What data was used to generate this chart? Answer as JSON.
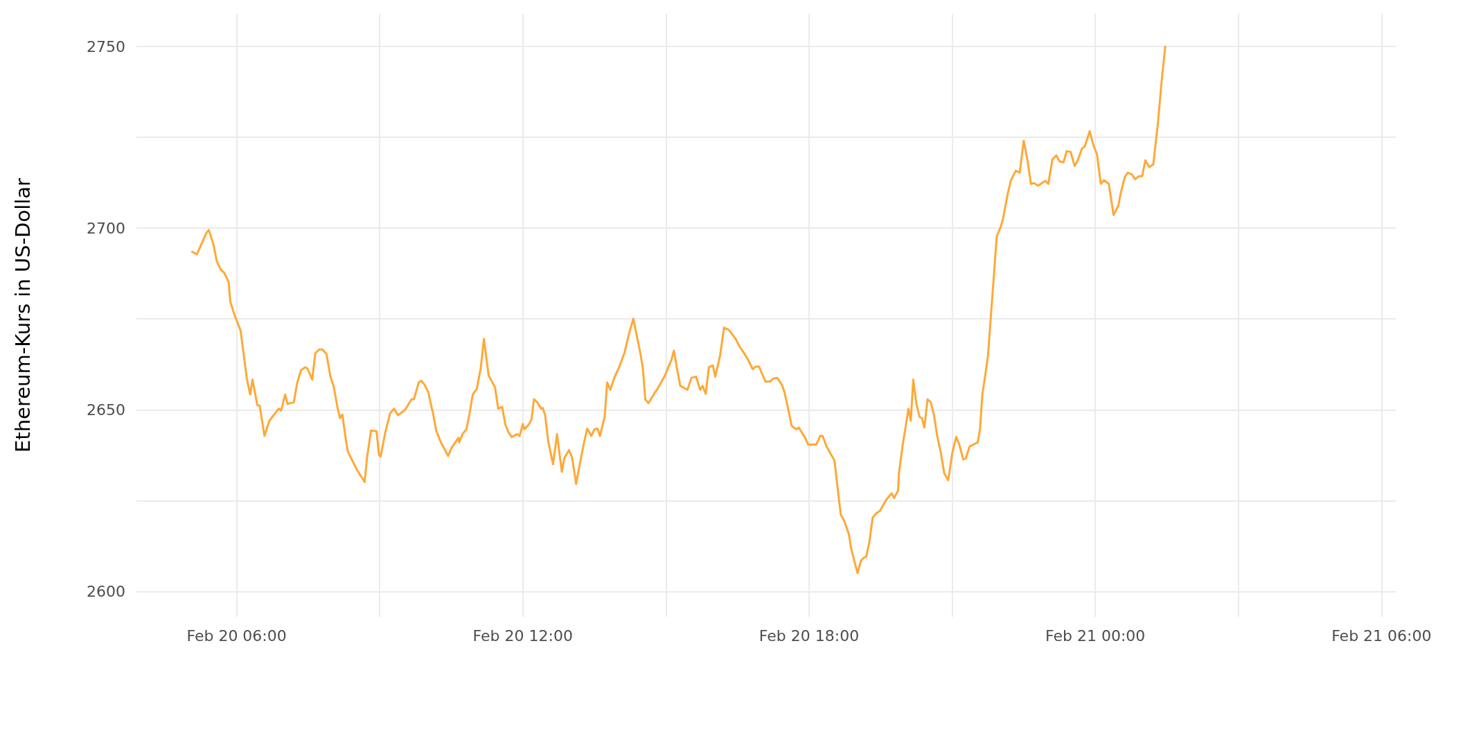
{
  "chart_data": {
    "type": "line",
    "ylabel": "Ethereum-Kurs in US-Dollar",
    "x": [
      "--02-20T05:04",
      "--02-20T05:10",
      "--02-20T05:22",
      "--02-20T05:25",
      "--02-20T05:31",
      "--02-20T05:35",
      "--02-20T05:40",
      "--02-20T05:44",
      "--02-20T05:50",
      "--02-20T05:52",
      "--02-20T05:58",
      "--02-20T06:05",
      "--02-20T06:13",
      "--02-20T06:17",
      "--02-20T06:20",
      "--02-20T06:26",
      "--02-20T06:29",
      "--02-20T06:35",
      "--02-20T06:41",
      "--02-20T06:49",
      "--02-20T06:53",
      "--02-20T06:56",
      "--02-20T07:01",
      "--02-20T07:04",
      "--02-20T07:12",
      "--02-20T07:16",
      "--02-20T07:21",
      "--02-20T07:26",
      "--02-20T07:29",
      "--02-20T07:35",
      "--02-20T07:39",
      "--02-20T07:44",
      "--02-20T07:48",
      "--02-20T07:53",
      "--02-20T07:58",
      "--02-20T08:02",
      "--02-20T08:07",
      "--02-20T08:10",
      "--02-20T08:13",
      "--02-20T08:17",
      "--02-20T08:20",
      "--02-20T08:32",
      "--02-20T08:41",
      "--02-20T08:44",
      "--02-20T08:49",
      "--02-20T08:56",
      "--02-20T08:59",
      "--02-20T09:01",
      "--02-20T09:07",
      "--02-20T09:13",
      "--02-20T09:18",
      "--02-20T09:23",
      "--02-20T09:32",
      "--02-20T09:40",
      "--02-20T09:43",
      "--02-20T09:49",
      "--02-20T09:52",
      "--02-20T09:56",
      "--02-20T10:01",
      "--02-20T10:07",
      "--02-20T10:11",
      "--02-20T10:17",
      "--02-20T10:26",
      "--02-20T10:30",
      "--02-20T10:39",
      "--02-20T10:40",
      "--02-20T10:44",
      "--02-20T10:49",
      "--02-20T10:53",
      "--02-20T10:57",
      "--02-20T11:02",
      "--02-20T11:07",
      "--02-20T11:11",
      "--02-20T11:17",
      "--02-20T11:25",
      "--02-20T11:29",
      "--02-20T11:34",
      "--02-20T11:38",
      "--02-20T11:42",
      "--02-20T11:46",
      "--02-20T11:53",
      "--02-20T11:56",
      "--02-20T12:00",
      "--02-20T12:02",
      "--02-20T12:08",
      "--02-20T12:11",
      "--02-20T12:14",
      "--02-20T12:18",
      "--02-20T12:23",
      "--02-20T12:25",
      "--02-20T12:28",
      "--02-20T12:32",
      "--02-20T12:38",
      "--02-20T12:43",
      "--02-20T12:49",
      "--02-20T12:52",
      "--02-20T12:58",
      "--02-20T13:02",
      "--02-20T13:07",
      "--02-20T13:10",
      "--02-20T13:17",
      "--02-20T13:21",
      "--02-20T13:26",
      "--02-20T13:30",
      "--02-20T13:34",
      "--02-20T13:37",
      "--02-20T13:43",
      "--02-20T13:46",
      "--02-20T13:50",
      "--02-20T13:55",
      "--02-20T14:02",
      "--02-20T14:08",
      "--02-20T14:14",
      "--02-20T14:19",
      "--02-20T14:23",
      "--02-20T14:28",
      "--02-20T14:31",
      "--02-20T14:34",
      "--02-20T14:38",
      "--02-20T14:46",
      "--02-20T14:50",
      "--02-20T14:58",
      "--02-20T15:07",
      "--02-20T15:10",
      "--02-20T15:14",
      "--02-20T15:18",
      "--02-20T15:27",
      "--02-20T15:32",
      "--02-20T15:38",
      "--02-20T15:43",
      "--02-20T15:46",
      "--02-20T15:50",
      "--02-20T15:54",
      "--02-20T15:59",
      "--02-20T16:02",
      "--02-20T16:08",
      "--02-20T16:13",
      "--02-20T16:19",
      "--02-20T16:28",
      "--02-20T16:32",
      "--02-20T16:40",
      "--02-20T16:44",
      "--02-20T16:49",
      "--02-20T16:53",
      "--02-20T16:57",
      "--02-20T17:02",
      "--02-20T17:05",
      "--02-20T17:11",
      "--02-20T17:15",
      "--02-20T17:20",
      "--02-20T17:26",
      "--02-20T17:29",
      "--02-20T17:34",
      "--02-20T17:38",
      "--02-20T17:44",
      "--02-20T17:47",
      "--02-20T17:55",
      "--02-20T17:59",
      "--02-20T18:09",
      "--02-20T18:14",
      "--02-20T18:17",
      "--02-20T18:22",
      "--02-20T18:32",
      "--02-20T18:36",
      "--02-20T18:40",
      "--02-20T18:44",
      "--02-20T18:50",
      "--02-20T18:53",
      "--02-20T18:58",
      "--02-20T19:01",
      "--02-20T19:05",
      "--02-20T19:08",
      "--02-20T19:12",
      "--02-20T19:16",
      "--02-20T19:20",
      "--02-20T19:25",
      "--02-20T19:29",
      "--02-20T19:37",
      "--02-20T19:44",
      "--02-20T19:47",
      "--02-20T19:52",
      "--02-20T19:53",
      "--02-20T19:58",
      "--02-20T20:02",
      "--02-20T20:05",
      "--02-20T20:08",
      "--02-20T20:11",
      "--02-20T20:15",
      "--02-20T20:19",
      "--02-20T20:22",
      "--02-20T20:25",
      "--02-20T20:29",
      "--02-20T20:33",
      "--02-20T20:37",
      "--02-20T20:41",
      "--02-20T20:46",
      "--02-20T20:50",
      "--02-20T20:55",
      "--02-20T21:00",
      "--02-20T21:05",
      "--02-20T21:09",
      "--02-20T21:14",
      "--02-20T21:17",
      "--02-20T21:22",
      "--02-20T21:32",
      "--02-20T21:35",
      "--02-20T21:38",
      "--02-20T21:41",
      "--02-20T21:45",
      "--02-20T21:49",
      "--02-20T21:52",
      "--02-20T21:56",
      "--02-20T22:01",
      "--02-20T22:04",
      "--02-20T22:10",
      "--02-20T22:14",
      "--02-20T22:20",
      "--02-20T22:25",
      "--02-20T22:30",
      "--02-20T22:35",
      "--02-20T22:39",
      "--02-20T22:43",
      "--02-20T22:48",
      "--02-20T22:57",
      "--02-20T23:01",
      "--02-20T23:06",
      "--02-20T23:11",
      "--02-20T23:15",
      "--02-20T23:20",
      "--02-20T23:24",
      "--02-20T23:29",
      "--02-20T23:34",
      "--02-20T23:38",
      "--02-20T23:43",
      "--02-20T23:47",
      "--02-20T23:53",
      "--02-20T23:58",
      "--02-21T00:02",
      "--02-21T00:07",
      "--02-21T00:11",
      "--02-21T00:17",
      "--02-21T00:23",
      "--02-21T00:29",
      "--02-21T00:32",
      "--02-21T00:37",
      "--02-21T00:41",
      "--02-21T00:46",
      "--02-21T00:50",
      "--02-21T00:55",
      "--02-21T00:59",
      "--02-21T01:03",
      "--02-21T01:08",
      "--02-21T01:13",
      "--02-21T01:19",
      "--02-21T01:23",
      "--02-21T01:28"
    ],
    "series": [
      {
        "color": "#ffa836",
        "values": [
          2693.5,
          2692.8,
          2698.7,
          2699.5,
          2695.4,
          2690.9,
          2688.6,
          2687.8,
          2685.2,
          2679.8,
          2675.7,
          2671.8,
          2658.3,
          2654.2,
          2658.3,
          2651.3,
          2651.1,
          2642.8,
          2646.9,
          2649.2,
          2650.3,
          2649.8,
          2654.2,
          2651.6,
          2652.1,
          2657.3,
          2660.9,
          2661.7,
          2661.4,
          2658.3,
          2665.6,
          2666.6,
          2666.6,
          2665.3,
          2659.1,
          2656.5,
          2650.5,
          2647.7,
          2648.7,
          2642.3,
          2638.4,
          2633.2,
          2630.1,
          2636.8,
          2644.3,
          2644.1,
          2637.6,
          2637.1,
          2643.8,
          2649,
          2650.3,
          2648.5,
          2650,
          2652.9,
          2652.9,
          2657.5,
          2658,
          2657,
          2654.9,
          2649,
          2644.3,
          2641,
          2637.3,
          2639.4,
          2642.3,
          2641,
          2643.3,
          2644.6,
          2649,
          2654.2,
          2655.7,
          2661.4,
          2669.5,
          2659.4,
          2656.2,
          2650.3,
          2650.8,
          2645.9,
          2643.8,
          2642.5,
          2643.3,
          2642.8,
          2646.1,
          2644.6,
          2646.1,
          2647.4,
          2652.9,
          2652.1,
          2650.3,
          2650.5,
          2648.5,
          2641.2,
          2635,
          2643.3,
          2632.9,
          2636.6,
          2638.9,
          2636.8,
          2629.6,
          2633.2,
          2641,
          2644.8,
          2642.8,
          2644.6,
          2644.8,
          2642.8,
          2648.2,
          2657.5,
          2655.5,
          2658.8,
          2662.2,
          2665.8,
          2671.3,
          2675.1,
          2670.7,
          2665.3,
          2661.4,
          2652.9,
          2651.8,
          2654.7,
          2656,
          2659.1,
          2663.8,
          2666.3,
          2661.2,
          2656.6,
          2655.5,
          2658.8,
          2659.1,
          2655.5,
          2656.6,
          2654.4,
          2661.7,
          2662.2,
          2659.1,
          2664.8,
          2672.6,
          2672,
          2669.4,
          2667.6,
          2665,
          2663.5,
          2661.2,
          2661.9,
          2661.9,
          2659.4,
          2657.8,
          2657.8,
          2658.6,
          2658.8,
          2656.8,
          2654.9,
          2650,
          2645.6,
          2644.6,
          2645.1,
          2642.3,
          2640.4,
          2640.4,
          2642.8,
          2642.8,
          2639.9,
          2636,
          2628.3,
          2621,
          2619.5,
          2615.8,
          2611.7,
          2607.5,
          2605,
          2608.3,
          2609.1,
          2609.6,
          2613.8,
          2620.3,
          2621.6,
          2622.1,
          2625.2,
          2627,
          2625.7,
          2627.8,
          2632.5,
          2640.7,
          2646,
          2650.3,
          2647,
          2658.3,
          2651.6,
          2648,
          2647.7,
          2645.1,
          2652.9,
          2652.1,
          2648.7,
          2643,
          2637.9,
          2632.5,
          2630.6,
          2637.9,
          2642.5,
          2640.4,
          2636.3,
          2636.6,
          2639.9,
          2641,
          2644.6,
          2654.4,
          2658.6,
          2664.8,
          2676.7,
          2685.5,
          2697.7,
          2700.3,
          2702.6,
          2709.6,
          2713.2,
          2715.8,
          2715.3,
          2724.1,
          2718.4,
          2712.2,
          2712.4,
          2711.7,
          2713,
          2712.2,
          2718.9,
          2720,
          2718.4,
          2718.1,
          2721.2,
          2721,
          2717.1,
          2718.7,
          2721.8,
          2722.6,
          2726.7,
          2722.6,
          2720.5,
          2712.2,
          2713.2,
          2712.2,
          2703.6,
          2706.2,
          2709.6,
          2714,
          2715.3,
          2714.8,
          2713.5,
          2714.3,
          2714.3,
          2718.7,
          2716.8,
          2717.6,
          2729.3,
          2739.4,
          2750
        ]
      }
    ],
    "xlim": [
      "--02-20T03:54",
      "--02-21T06:18"
    ],
    "xticks": [
      {
        "value": "--02-20T06:00",
        "label": "Feb 20 06:00"
      },
      {
        "value": "--02-20T09:00",
        "label": null
      },
      {
        "value": "--02-20T12:00",
        "label": "Feb 20 12:00"
      },
      {
        "value": "--02-20T15:00",
        "label": null
      },
      {
        "value": "--02-20T18:00",
        "label": "Feb 20 18:00"
      },
      {
        "value": "--02-20T21:00",
        "label": null
      },
      {
        "value": "--02-21T00:00",
        "label": "Feb 21 00:00"
      },
      {
        "value": "--02-21T03:00",
        "label": null
      },
      {
        "value": "--02-21T06:00",
        "label": "Feb 21 06:00"
      }
    ],
    "ylim": [
      2593,
      2759
    ],
    "yticks": [
      2600,
      {
        "value": 2625,
        "label": null
      },
      2650,
      {
        "value": 2675,
        "label": null
      },
      2700,
      {
        "value": 2725,
        "label": null
      },
      2750
    ],
    "grid": true,
    "marker": "none",
    "line_style": "solid"
  }
}
